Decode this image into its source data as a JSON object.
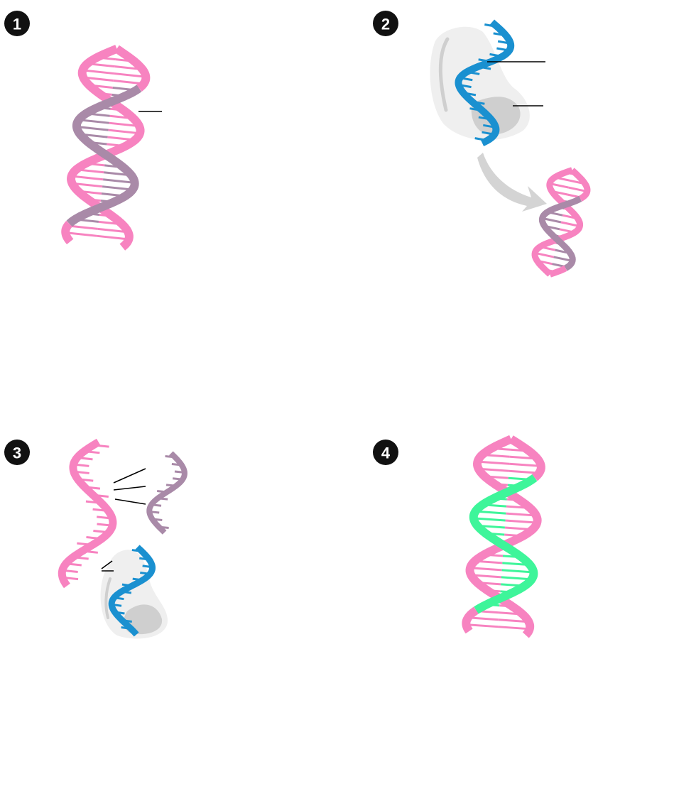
{
  "panels": [
    {
      "number": "1"
    },
    {
      "number": "2"
    },
    {
      "number": "3"
    },
    {
      "number": "4"
    }
  ]
}
